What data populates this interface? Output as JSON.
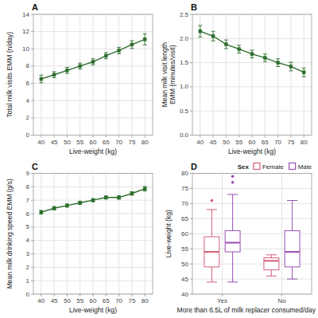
{
  "chart_data": [
    {
      "type": "line",
      "title": "A",
      "x": [
        40,
        45,
        50,
        55,
        60,
        65,
        70,
        75,
        80
      ],
      "values": [
        6.5,
        7.0,
        7.5,
        8.0,
        8.5,
        9.2,
        9.8,
        10.5,
        11.1
      ],
      "errors": [
        0.45,
        0.35,
        0.35,
        0.35,
        0.35,
        0.35,
        0.38,
        0.45,
        0.65
      ],
      "xlabel": "Live-weight (kg)",
      "ylabel": "Total milk visits EMM (n/day)",
      "xlim": [
        37,
        83
      ],
      "ylim": [
        0,
        14
      ],
      "xticks": [
        40,
        45,
        50,
        55,
        60,
        65,
        70,
        75,
        80
      ],
      "yticks": [
        0,
        2,
        4,
        6,
        8,
        10,
        12,
        14
      ],
      "color": "#2d6e2d",
      "marker": "square",
      "grid": true
    },
    {
      "type": "line",
      "title": "B",
      "x": [
        40,
        45,
        50,
        55,
        60,
        65,
        70,
        75,
        80
      ],
      "values": [
        2.15,
        2.05,
        1.88,
        1.78,
        1.68,
        1.6,
        1.5,
        1.42,
        1.3
      ],
      "errors": [
        0.12,
        0.1,
        0.09,
        0.08,
        0.08,
        0.08,
        0.08,
        0.09,
        0.09
      ],
      "xlabel": "Live-weight (kg)",
      "ylabel": "Mean milk visit length\nEMM (minutes/visit)",
      "xlim": [
        37,
        83
      ],
      "ylim": [
        0,
        2.5
      ],
      "xticks": [
        40,
        45,
        50,
        55,
        60,
        65,
        70,
        75,
        80
      ],
      "yticks": [
        {
          "value": 0,
          "label": "0.0"
        },
        0.5,
        {
          "value": 1,
          "label": "1.0"
        },
        1.5,
        {
          "value": 2,
          "label": "2.0"
        },
        2.5
      ],
      "color": "#2d6e2d",
      "marker": "square",
      "grid": true
    },
    {
      "type": "line",
      "title": "C",
      "x": [
        40,
        45,
        50,
        55,
        60,
        65,
        70,
        75,
        80
      ],
      "values": [
        6.1,
        6.4,
        6.6,
        6.8,
        7.0,
        7.2,
        7.2,
        7.5,
        7.85
      ],
      "errors": [
        0.14,
        0.13,
        0.12,
        0.12,
        0.12,
        0.12,
        0.13,
        0.13,
        0.17
      ],
      "xlabel": "Live-weight (kg)",
      "ylabel": "Mean milk drinking speed EMM (g/s)",
      "xlim": [
        37,
        83
      ],
      "ylim": [
        0,
        9
      ],
      "xticks": [
        40,
        45,
        50,
        55,
        60,
        65,
        70,
        75,
        80
      ],
      "yticks": [
        0,
        1,
        2,
        3,
        4,
        5,
        6,
        7,
        8,
        9
      ],
      "color": "#2d6e2d",
      "marker": "square",
      "grid": true
    },
    {
      "type": "box",
      "title": "D",
      "xlabel": "More than 6.5L of milk replacer consumed/day",
      "ylabel": "Live-weight (kg)",
      "categories": [
        "Yes",
        "No"
      ],
      "series": [
        {
          "name": "Female",
          "color": "#d4607a",
          "values": [
            {
              "median": 54,
              "q1": 49,
              "q3": 59,
              "whislo": 44,
              "whishi": 68,
              "fliers": [
                71
              ]
            },
            {
              "median": 51,
              "q1": 48,
              "q3": 52,
              "whislo": 46,
              "whishi": 53,
              "fliers": []
            }
          ]
        },
        {
          "name": "Male",
          "color": "#9b4fb5",
          "values": [
            {
              "median": 57,
              "q1": 54,
              "q3": 61,
              "whislo": 44,
              "whishi": 73,
              "fliers": [
                77,
                79
              ]
            },
            {
              "median": 54,
              "q1": 49,
              "q3": 61,
              "whislo": 45,
              "whishi": 71,
              "fliers": []
            }
          ]
        }
      ],
      "ylim": [
        40,
        80
      ],
      "yticks": [
        40,
        45,
        50,
        55,
        60,
        65,
        70,
        75,
        80
      ],
      "legend_title": "Sex",
      "legend": "upper right",
      "grid": true
    }
  ]
}
